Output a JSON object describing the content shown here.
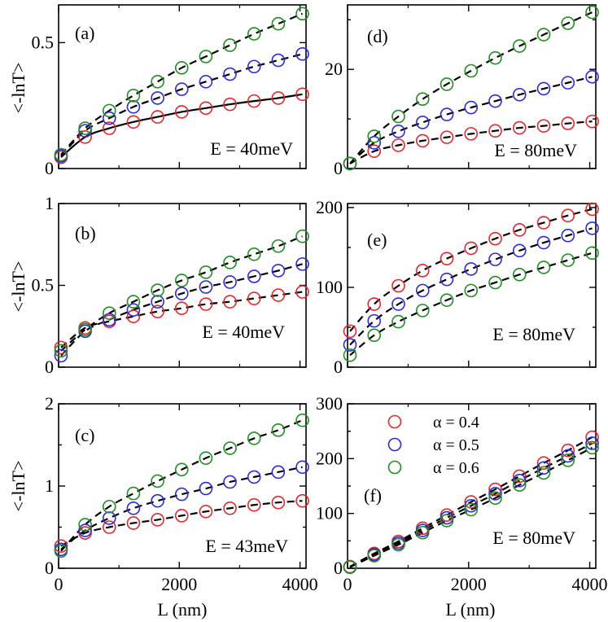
{
  "figure": {
    "x_label": "L (nm)",
    "y_label": "<-lnT>",
    "legend": [
      {
        "label": "α = 0.4",
        "color": "#e8262a"
      },
      {
        "label": "α = 0.5",
        "color": "#2a2ae0"
      },
      {
        "label": "α = 0.6",
        "color": "#1f8f1f"
      }
    ]
  },
  "chart_data": [
    {
      "id": "a",
      "type": "scatter",
      "panel_label": "(a)",
      "annotation": "E = 40meV",
      "xlim": [
        0,
        4100
      ],
      "ylim": [
        0,
        0.65
      ],
      "xticks": [
        0,
        2000,
        4000
      ],
      "xtick_labels": [
        "0",
        "2000",
        "4000"
      ],
      "yticks": [
        0,
        0.5
      ],
      "ytick_labels": [
        "0",
        "0.5"
      ],
      "x": [
        40,
        440,
        840,
        1240,
        1640,
        2040,
        2440,
        2840,
        3240,
        3640,
        4040
      ],
      "series": [
        {
          "name": "α = 0.4",
          "color": "#e8262a",
          "fit": "solid",
          "values": [
            0.045,
            0.125,
            0.16,
            0.185,
            0.205,
            0.225,
            0.24,
            0.255,
            0.268,
            0.28,
            0.295
          ]
        },
        {
          "name": "α = 0.5",
          "color": "#2a2ae0",
          "fit": "dashed",
          "values": [
            0.05,
            0.15,
            0.2,
            0.245,
            0.28,
            0.315,
            0.345,
            0.375,
            0.405,
            0.43,
            0.455
          ]
        },
        {
          "name": "α = 0.6",
          "color": "#1f8f1f",
          "fit": "dashed",
          "values": [
            0.055,
            0.16,
            0.23,
            0.29,
            0.345,
            0.4,
            0.445,
            0.49,
            0.535,
            0.575,
            0.615
          ]
        }
      ]
    },
    {
      "id": "d",
      "type": "scatter",
      "panel_label": "(d)",
      "annotation": "E = 80meV",
      "xlim": [
        0,
        4100
      ],
      "ylim": [
        0,
        33
      ],
      "xticks": [
        0,
        2000,
        4000
      ],
      "xtick_labels": [
        "0",
        "2000",
        "4000"
      ],
      "yticks": [
        0,
        10,
        20,
        30
      ],
      "ytick_labels": [
        "0",
        "",
        "20",
        ""
      ],
      "x": [
        40,
        440,
        840,
        1240,
        1640,
        2040,
        2440,
        2840,
        3240,
        3640,
        4040
      ],
      "series": [
        {
          "name": "α = 0.4",
          "color": "#e8262a",
          "fit": "dashed",
          "values": [
            1.0,
            3.5,
            4.7,
            5.6,
            6.3,
            7.0,
            7.6,
            8.2,
            8.6,
            9.1,
            9.5
          ]
        },
        {
          "name": "α = 0.5",
          "color": "#2a2ae0",
          "fit": "dashed",
          "values": [
            1.0,
            5.2,
            7.5,
            9.3,
            10.9,
            12.3,
            13.6,
            14.9,
            16.1,
            17.3,
            18.5
          ]
        },
        {
          "name": "α = 0.6",
          "color": "#1f8f1f",
          "fit": "dashed",
          "values": [
            1.0,
            6.5,
            10.5,
            14.0,
            17.0,
            19.7,
            22.3,
            24.7,
            27.0,
            29.3,
            31.5
          ]
        }
      ]
    },
    {
      "id": "b",
      "type": "scatter",
      "panel_label": "(b)",
      "annotation": "E = 40meV",
      "xlim": [
        0,
        4100
      ],
      "ylim": [
        0,
        1.0
      ],
      "xticks": [
        0,
        2000,
        4000
      ],
      "xtick_labels": [
        "0",
        "2000",
        "4000"
      ],
      "yticks": [
        0,
        0.5,
        1
      ],
      "ytick_labels": [
        "0",
        "0.5",
        "1"
      ],
      "x": [
        40,
        440,
        840,
        1240,
        1640,
        2040,
        2440,
        2840,
        3240,
        3640,
        4040
      ],
      "series": [
        {
          "name": "α = 0.4",
          "color": "#e8262a",
          "fit": "dashed",
          "values": [
            0.12,
            0.24,
            0.28,
            0.31,
            0.34,
            0.36,
            0.385,
            0.4,
            0.42,
            0.44,
            0.46
          ]
        },
        {
          "name": "α = 0.5",
          "color": "#2a2ae0",
          "fit": "dashed",
          "values": [
            0.07,
            0.22,
            0.29,
            0.35,
            0.4,
            0.45,
            0.49,
            0.52,
            0.555,
            0.59,
            0.63
          ]
        },
        {
          "name": "α = 0.6",
          "color": "#1f8f1f",
          "fit": "dashed",
          "values": [
            0.1,
            0.23,
            0.33,
            0.4,
            0.47,
            0.53,
            0.58,
            0.64,
            0.69,
            0.74,
            0.8
          ]
        }
      ]
    },
    {
      "id": "e",
      "type": "scatter",
      "panel_label": "(e)",
      "annotation": "E = 80meV",
      "xlim": [
        0,
        4100
      ],
      "ylim": [
        0,
        205
      ],
      "xticks": [
        0,
        2000,
        4000
      ],
      "xtick_labels": [
        "0",
        "2000",
        "4000"
      ],
      "yticks": [
        0,
        50,
        100,
        150,
        200
      ],
      "ytick_labels": [
        "0",
        "",
        "100",
        "",
        "200"
      ],
      "x": [
        40,
        440,
        840,
        1240,
        1640,
        2040,
        2440,
        2840,
        3240,
        3640,
        4040
      ],
      "series": [
        {
          "name": "α = 0.4",
          "color": "#e8262a",
          "fit": "dashed",
          "values": [
            45,
            79,
            102,
            121,
            136,
            149,
            161,
            172,
            181,
            190,
            198
          ]
        },
        {
          "name": "α = 0.5",
          "color": "#2a2ae0",
          "fit": "dashed",
          "values": [
            28,
            58,
            79,
            96,
            110,
            123,
            135,
            146,
            156,
            165,
            174
          ]
        },
        {
          "name": "α = 0.6",
          "color": "#1f8f1f",
          "fit": "dashed",
          "values": [
            15,
            40,
            57,
            71,
            84,
            96,
            106,
            116,
            125,
            134,
            143
          ]
        }
      ]
    },
    {
      "id": "c",
      "type": "scatter",
      "panel_label": "(c)",
      "annotation": "E = 43meV",
      "xlim": [
        0,
        4100
      ],
      "ylim": [
        0,
        2.0
      ],
      "xticks": [
        0,
        2000,
        4000
      ],
      "xtick_labels": [
        "0",
        "2000",
        "4000"
      ],
      "yticks": [
        0,
        0.5,
        1,
        1.5,
        2
      ],
      "ytick_labels": [
        "0",
        "",
        "1",
        "",
        "2"
      ],
      "x": [
        40,
        440,
        840,
        1240,
        1640,
        2040,
        2440,
        2840,
        3240,
        3640,
        4040
      ],
      "series": [
        {
          "name": "α = 0.4",
          "color": "#e8262a",
          "fit": "dashed",
          "values": [
            0.27,
            0.43,
            0.5,
            0.55,
            0.59,
            0.64,
            0.69,
            0.73,
            0.77,
            0.8,
            0.82
          ]
        },
        {
          "name": "α = 0.5",
          "color": "#2a2ae0",
          "fit": "dashed",
          "values": [
            0.23,
            0.46,
            0.61,
            0.73,
            0.82,
            0.9,
            0.97,
            1.05,
            1.11,
            1.17,
            1.23
          ]
        },
        {
          "name": "α = 0.6",
          "color": "#1f8f1f",
          "fit": "dashed",
          "values": [
            0.21,
            0.53,
            0.75,
            0.91,
            1.06,
            1.2,
            1.34,
            1.46,
            1.58,
            1.68,
            1.8
          ]
        }
      ]
    },
    {
      "id": "f",
      "type": "scatter",
      "panel_label": "(f)",
      "annotation": "E = 80meV",
      "xlim": [
        0,
        4100
      ],
      "ylim": [
        0,
        300
      ],
      "xticks": [
        0,
        2000,
        4000
      ],
      "xtick_labels": [
        "0",
        "2000",
        "4000"
      ],
      "yticks": [
        0,
        50,
        100,
        150,
        200,
        250,
        300
      ],
      "ytick_labels": [
        "0",
        "",
        "100",
        "",
        "200",
        "",
        "300"
      ],
      "x": [
        40,
        440,
        840,
        1240,
        1640,
        2040,
        2440,
        2840,
        3240,
        3640,
        4040
      ],
      "legend": true,
      "series": [
        {
          "name": "α = 0.4",
          "color": "#e8262a",
          "fit": "dashed",
          "values": [
            3,
            27,
            49,
            73,
            97,
            121,
            144,
            168,
            192,
            215,
            239
          ]
        },
        {
          "name": "α = 0.5",
          "color": "#2a2ae0",
          "fit": "dashed",
          "values": [
            2,
            25,
            46,
            69,
            92,
            114,
            136,
            160,
            183,
            205,
            228
          ]
        },
        {
          "name": "α = 0.6",
          "color": "#1f8f1f",
          "fit": "dashed",
          "values": [
            2,
            23,
            43,
            65,
            87,
            107,
            128,
            152,
            174,
            197,
            220
          ]
        }
      ]
    }
  ]
}
